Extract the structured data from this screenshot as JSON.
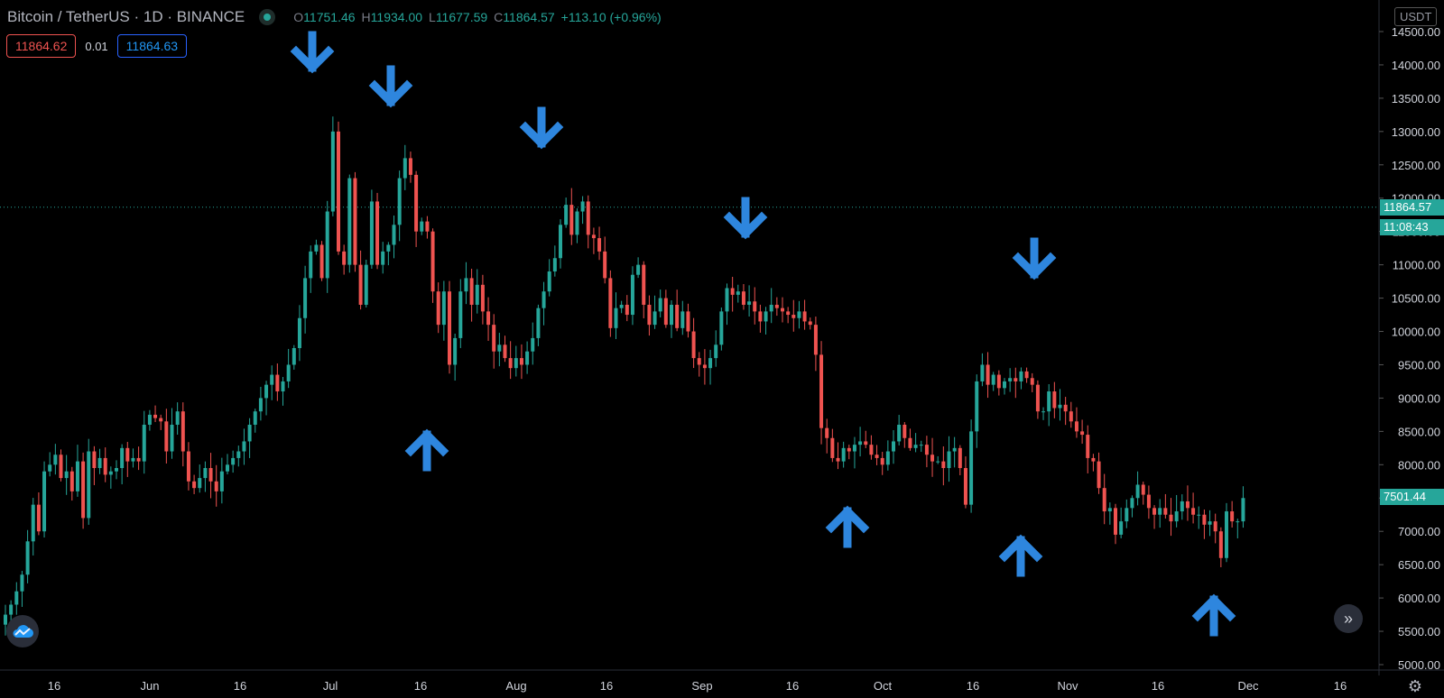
{
  "header": {
    "symbol": "Bitcoin / TetherUS · 1D · BINANCE",
    "open_label": "O",
    "open": "11751.46",
    "high_label": "H",
    "high": "11934.00",
    "low_label": "L",
    "low": "11677.59",
    "close_label": "C",
    "close": "11864.57",
    "change": "+113.10 (+0.96%)"
  },
  "quote": {
    "bid": "11864.62",
    "spread": "0.01",
    "ask": "11864.63"
  },
  "currency": "USDT",
  "price_tags": {
    "last": "11864.57",
    "countdown": "11:08:43",
    "level": "7501.44"
  },
  "colors": {
    "up": "#26a69a",
    "down": "#ef5350",
    "arrow": "#2e86de",
    "axis": "#d1d4dc"
  },
  "icons": {
    "logo": "cloud-logo-icon",
    "scroll": "double-chevron-right-icon",
    "settings": "gear-icon"
  },
  "chart_data": {
    "type": "candlestick",
    "y_axis_ticks": [
      "5000.00",
      "5500.00",
      "6000.00",
      "6500.00",
      "7000.00",
      "7500.00",
      "8000.00",
      "8500.00",
      "9000.00",
      "9500.00",
      "10000.00",
      "10500.00",
      "11000.00",
      "11500.00",
      "12000.00",
      "12500.00",
      "13000.00",
      "13500.00",
      "14000.00",
      "14500.00"
    ],
    "ylim": [
      5000,
      14500
    ],
    "x_axis_ticks": [
      "16",
      "Jun",
      "16",
      "Jul",
      "16",
      "Aug",
      "16",
      "Sep",
      "16",
      "Oct",
      "16",
      "Nov",
      "16",
      "Dec",
      "16"
    ],
    "last_price_line": 11864.57,
    "closes": [
      5750,
      5900,
      6100,
      6350,
      6850,
      7400,
      7000,
      7900,
      8000,
      8150,
      7800,
      7900,
      7600,
      8050,
      7200,
      8200,
      7950,
      8100,
      7850,
      7900,
      7950,
      8250,
      8050,
      8100,
      8050,
      8600,
      8750,
      8700,
      8650,
      8200,
      8600,
      8800,
      8200,
      7750,
      7650,
      7800,
      7950,
      7750,
      7600,
      7900,
      8000,
      8100,
      8200,
      8350,
      8600,
      8800,
      9000,
      9200,
      9350,
      9100,
      9250,
      9500,
      9750,
      10200,
      10800,
      11200,
      11300,
      10800,
      11800,
      13000,
      11200,
      11000,
      12300,
      11000,
      10400,
      11000,
      11950,
      11000,
      11200,
      11300,
      11600,
      12300,
      12600,
      12350,
      11500,
      11650,
      11500,
      10600,
      10100,
      10600,
      9500,
      9900,
      10600,
      10800,
      10400,
      10700,
      10300,
      10100,
      9700,
      9800,
      9600,
      9450,
      9600,
      9500,
      9700,
      9900,
      10350,
      10600,
      10900,
      11100,
      11600,
      11900,
      11450,
      11800,
      11950,
      11450,
      11400,
      11200,
      10800,
      10050,
      10350,
      10400,
      10250,
      10850,
      11000,
      10400,
      10100,
      10300,
      10500,
      10100,
      10400,
      10050,
      10300,
      10000,
      9600,
      9500,
      9450,
      9600,
      9800,
      10300,
      10650,
      10550,
      10600,
      10400,
      10450,
      10300,
      10150,
      10300,
      10400,
      10350,
      10300,
      10250,
      10200,
      10300,
      10150,
      10100,
      9650,
      8550,
      8400,
      8100,
      8050,
      8250,
      8200,
      8300,
      8350,
      8300,
      8150,
      8100,
      8000,
      8200,
      8350,
      8600,
      8400,
      8250,
      8300,
      8300,
      8150,
      8050,
      8050,
      7950,
      8200,
      8250,
      7950,
      7400,
      8500,
      9250,
      9500,
      9200,
      9350,
      9150,
      9250,
      9300,
      9250,
      9400,
      9300,
      9200,
      8800,
      8800,
      9100,
      8850,
      8900,
      8800,
      8650,
      8500,
      8450,
      8100,
      8050,
      7650,
      7300,
      7350,
      6950,
      7150,
      7350,
      7500,
      7700,
      7550,
      7350,
      7250,
      7350,
      7250,
      7150,
      7300,
      7450,
      7350,
      7250,
      7250,
      7100,
      7150,
      7000,
      6600,
      7300,
      7150,
      7150,
      7500
    ],
    "annotations": [
      {
        "type": "arrow-down",
        "candle": 59
      },
      {
        "type": "arrow-down",
        "candle": 72
      },
      {
        "type": "arrow-up",
        "candle": 80
      },
      {
        "type": "arrow-down",
        "candle": 101
      },
      {
        "type": "arrow-down",
        "candle": 138
      },
      {
        "type": "arrow-up",
        "candle": 157
      },
      {
        "type": "arrow-down",
        "candle": 195
      },
      {
        "type": "arrow-up",
        "candle": 189
      },
      {
        "type": "arrow-up",
        "candle": 225
      }
    ]
  }
}
